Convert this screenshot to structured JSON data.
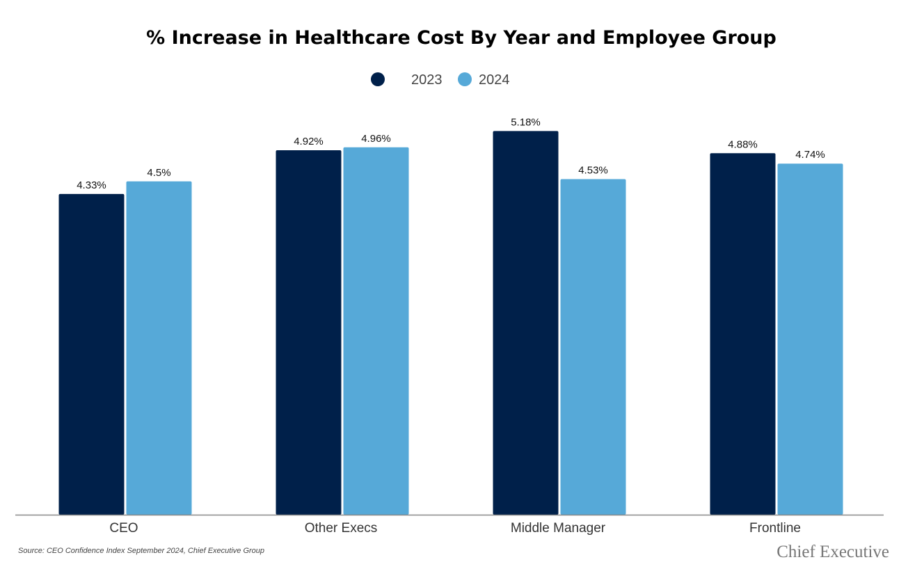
{
  "chart_data": {
    "type": "bar",
    "title": "% Increase in Healthcare Cost By Year and Employee Group",
    "categories": [
      "CEO",
      "Other Execs",
      "Middle Manager",
      "Frontline"
    ],
    "series": [
      {
        "name": "2023",
        "color": "#00204a",
        "values": [
          4.33,
          4.92,
          5.18,
          4.88
        ],
        "labels": [
          "4.33%",
          "4.92%",
          "5.18%",
          "4.88%"
        ]
      },
      {
        "name": "2024",
        "color": "#56a9d8",
        "values": [
          4.5,
          4.96,
          4.53,
          4.74
        ],
        "labels": [
          "4.5%",
          "4.96%",
          "4.53%",
          "4.74%"
        ]
      }
    ],
    "ylim": [
      0,
      5.5
    ],
    "grid": false,
    "legend_position": "top-center",
    "xlabel": "",
    "ylabel": ""
  },
  "footer": {
    "source": "Source: CEO Confidence Index September  2024, Chief Executive Group",
    "logo": "Chief Executive"
  }
}
